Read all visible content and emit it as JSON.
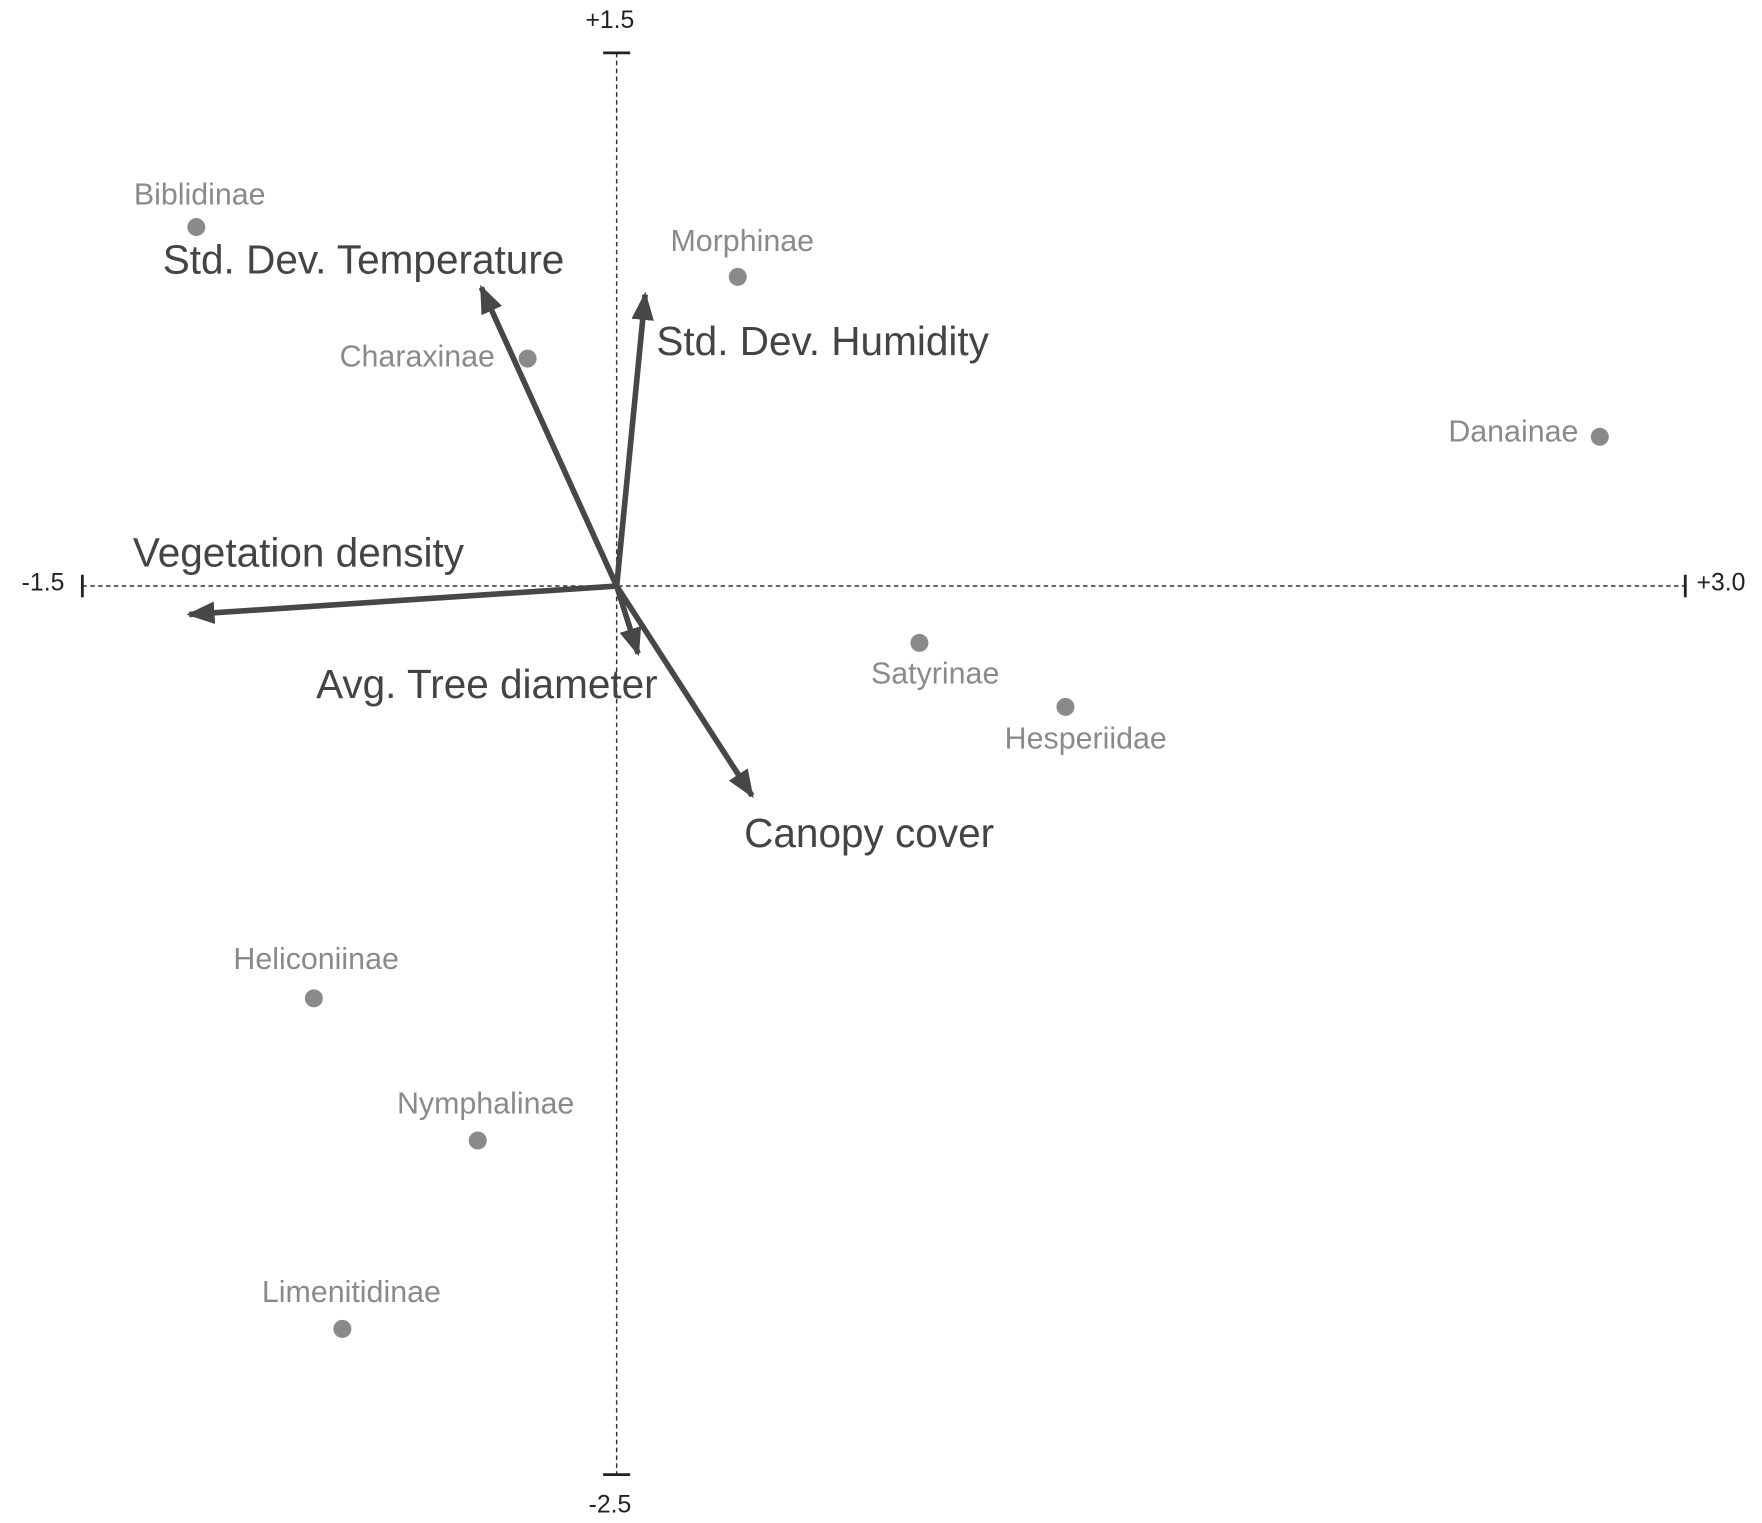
{
  "chart_data": {
    "type": "biplot",
    "xlim": [
      -1.5,
      3.0
    ],
    "ylim": [
      -2.5,
      1.5
    ],
    "xticks": [
      -1.5,
      {
        "value": 3.0,
        "label": "+3.0"
      }
    ],
    "yticks": [
      {
        "value": 1.5,
        "label": "+1.5"
      },
      -2.5
    ],
    "points": {
      "color": "#8a8a8a",
      "labels": [
        "Biblidinae",
        "Morphinae",
        "Charaxinae",
        "Danainae",
        "Satyrinae",
        "Hesperiidae",
        "Heliconiinae",
        "Nymphalinae",
        "Limenitidinae"
      ],
      "x": [
        -1.18,
        0.34,
        -0.25,
        2.76,
        0.85,
        1.26,
        -0.85,
        -0.39,
        -0.77
      ],
      "y": [
        1.01,
        0.87,
        0.64,
        0.42,
        -0.16,
        -0.34,
        -1.16,
        -1.56,
        -2.09
      ]
    },
    "vectors": {
      "color": "#474747",
      "labels": [
        "Std. Dev. Temperature",
        "Std. Dev. Humidity",
        "Vegetation density",
        "Avg. Tree diameter",
        "Canopy cover"
      ],
      "x": [
        -0.38,
        0.08,
        -1.2,
        0.06,
        0.38
      ],
      "y": [
        0.84,
        0.82,
        -0.08,
        -0.19,
        -0.59
      ]
    }
  }
}
